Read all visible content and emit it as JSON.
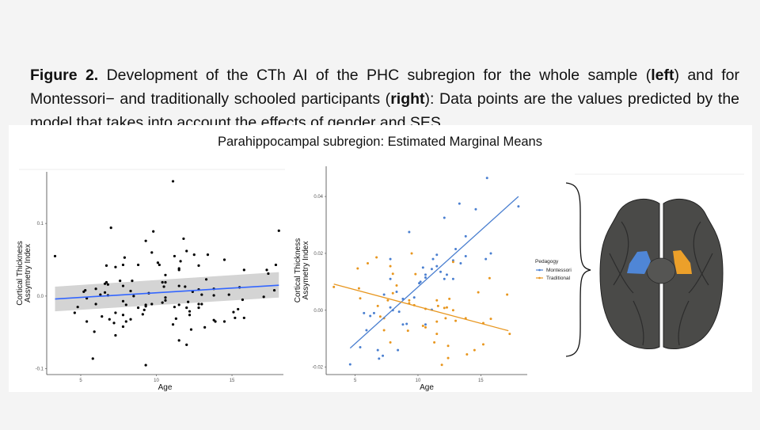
{
  "caption": {
    "fig_label": "Figure 2.",
    "part1": " Development of the CTh AI of the PHC subregion for the whole sample (",
    "left": "left",
    "part2": ") and for Montessori− and traditionally schooled participants (",
    "right": "right",
    "part3": "): Data points are the values predicted by the model that takes into account the effects of gender and SES."
  },
  "figure_title": "Parahippocampal subregion: Estimated Marginal Means",
  "chart_data": [
    {
      "type": "scatter",
      "title": "",
      "xlabel": "Age",
      "ylabel": "Cortical Thickness Assymetry Index",
      "xlim": [
        2.75,
        18.4
      ],
      "ylim": [
        -0.108,
        0.171
      ],
      "xticks": [
        5,
        10,
        15
      ],
      "xtick_labels": [
        "5",
        "10",
        "15"
      ],
      "yticks": [
        -0.1,
        0,
        0.1
      ],
      "ytick_labels": [
        "-0.1",
        "0.0",
        "0.1"
      ],
      "point_color": "#000000",
      "fit_color": "#3366ff",
      "band_color": "#d4d4d4",
      "fit": {
        "x": [
          3.3,
          18.1
        ],
        "y": [
          -0.004,
          0.015
        ],
        "lower": [
          -0.021,
          -0.002
        ],
        "upper": [
          0.013,
          0.033
        ]
      },
      "points": [
        [
          3.3,
          0.055
        ],
        [
          4.6,
          -0.023
        ],
        [
          4.8,
          -0.015
        ],
        [
          5.2,
          0.006
        ],
        [
          5.3,
          0.008
        ],
        [
          5.4,
          -0.003
        ],
        [
          5.4,
          -0.035
        ],
        [
          5.8,
          -0.086
        ],
        [
          5.9,
          -0.049
        ],
        [
          6.0,
          0.01
        ],
        [
          6.0,
          -0.011
        ],
        [
          6.3,
          0.002
        ],
        [
          6.4,
          -0.028
        ],
        [
          6.6,
          0.005
        ],
        [
          6.6,
          0.017
        ],
        [
          6.7,
          0.019
        ],
        [
          6.7,
          0.042
        ],
        [
          6.8,
          0.016
        ],
        [
          6.8,
          0.001
        ],
        [
          6.9,
          -0.032
        ],
        [
          7.0,
          0.094
        ],
        [
          7.2,
          -0.037
        ],
        [
          7.3,
          -0.054
        ],
        [
          7.3,
          0.04
        ],
        [
          7.3,
          -0.023
        ],
        [
          7.6,
          0.021
        ],
        [
          7.8,
          0.014
        ],
        [
          7.8,
          -0.007
        ],
        [
          7.8,
          -0.026
        ],
        [
          7.8,
          -0.042
        ],
        [
          7.8,
          0.043
        ],
        [
          7.9,
          0.053
        ],
        [
          8.0,
          -0.012
        ],
        [
          8.0,
          -0.035
        ],
        [
          8.3,
          0.007
        ],
        [
          8.3,
          -0.032
        ],
        [
          8.4,
          0.021
        ],
        [
          8.5,
          0.0
        ],
        [
          8.8,
          0.043
        ],
        [
          8.8,
          -0.016
        ],
        [
          9.1,
          -0.025
        ],
        [
          9.2,
          -0.019
        ],
        [
          9.3,
          0.076
        ],
        [
          9.3,
          -0.012
        ],
        [
          9.3,
          -0.014
        ],
        [
          9.3,
          -0.095
        ],
        [
          9.5,
          0.004
        ],
        [
          9.7,
          0.06
        ],
        [
          9.7,
          -0.011
        ],
        [
          9.8,
          0.089
        ],
        [
          10.1,
          0.046
        ],
        [
          10.2,
          0.043
        ],
        [
          10.4,
          0.019
        ],
        [
          10.4,
          -0.009
        ],
        [
          10.5,
          0.013
        ],
        [
          10.6,
          0.029
        ],
        [
          10.6,
          0.019
        ],
        [
          10.6,
          -0.002
        ],
        [
          10.6,
          -0.006
        ],
        [
          11.1,
          0.158
        ],
        [
          11.1,
          -0.039
        ],
        [
          11.2,
          0.055
        ],
        [
          11.2,
          -0.015
        ],
        [
          11.3,
          -0.031
        ],
        [
          11.5,
          0.038
        ],
        [
          11.5,
          0.036
        ],
        [
          11.5,
          0.014
        ],
        [
          11.5,
          -0.012
        ],
        [
          11.5,
          -0.061
        ],
        [
          11.6,
          0.048
        ],
        [
          11.8,
          0.079
        ],
        [
          11.9,
          0.013
        ],
        [
          12.0,
          0.062
        ],
        [
          12.0,
          -0.016
        ],
        [
          12.0,
          -0.067
        ],
        [
          12.1,
          -0.008
        ],
        [
          12.2,
          -0.026
        ],
        [
          12.2,
          -0.021
        ],
        [
          12.3,
          -0.046
        ],
        [
          12.4,
          0.006
        ],
        [
          12.5,
          0.057
        ],
        [
          12.8,
          0.042
        ],
        [
          12.8,
          0.009
        ],
        [
          12.8,
          -0.011
        ],
        [
          12.8,
          -0.016
        ],
        [
          13.0,
          0.002
        ],
        [
          13.0,
          -0.011
        ],
        [
          13.2,
          -0.043
        ],
        [
          13.3,
          0.023
        ],
        [
          13.4,
          0.057
        ],
        [
          13.8,
          0.01
        ],
        [
          13.8,
          0.001
        ],
        [
          13.8,
          -0.033
        ],
        [
          13.9,
          -0.035
        ],
        [
          14.5,
          0.05
        ],
        [
          14.5,
          -0.035
        ],
        [
          14.8,
          0.002
        ],
        [
          15.1,
          -0.022
        ],
        [
          15.2,
          -0.03
        ],
        [
          15.4,
          -0.018
        ],
        [
          15.5,
          0.012
        ],
        [
          15.7,
          -0.005
        ],
        [
          15.8,
          0.036
        ],
        [
          15.8,
          -0.03
        ],
        [
          17.1,
          -0.001
        ],
        [
          17.3,
          0.036
        ],
        [
          17.4,
          0.031
        ],
        [
          17.8,
          0.008
        ],
        [
          17.9,
          0.043
        ],
        [
          18.1,
          0.09
        ]
      ]
    },
    {
      "type": "scatter",
      "title": "",
      "xlabel": "Age",
      "ylabel": "Cortical Thickness Assymetry Index",
      "xlim": [
        2.69,
        18.7
      ],
      "ylim": [
        -0.0226,
        0.0506
      ],
      "xticks": [
        5,
        10,
        15
      ],
      "xtick_labels": [
        "5",
        "10",
        "15"
      ],
      "yticks": [
        -0.02,
        0,
        0.02,
        0.04
      ],
      "ytick_labels": [
        "-0.02",
        "0.00",
        "0.02",
        "0.04"
      ],
      "legend": {
        "title": "Pedagogy",
        "placement": "right"
      },
      "series": [
        {
          "name": "Montessori",
          "color": "#4a7fd0",
          "fit": {
            "x": [
              4.6,
              18.0
            ],
            "y": [
              -0.0133,
              0.04
            ]
          },
          "points": [
            [
              4.6,
              -0.019
            ],
            [
              5.4,
              -0.013
            ],
            [
              5.7,
              -0.001
            ],
            [
              5.9,
              -0.007
            ],
            [
              6.2,
              -0.002
            ],
            [
              6.5,
              -0.001
            ],
            [
              6.8,
              -0.014
            ],
            [
              6.9,
              -0.017
            ],
            [
              7.2,
              -0.016
            ],
            [
              7.3,
              0.0055
            ],
            [
              7.8,
              0.001
            ],
            [
              7.8,
              0.011
            ],
            [
              7.8,
              0.018
            ],
            [
              8.0,
              0.0
            ],
            [
              8.3,
              0.0065
            ],
            [
              8.4,
              -0.014
            ],
            [
              8.5,
              -0.0005
            ],
            [
              8.8,
              0.004
            ],
            [
              8.8,
              -0.005
            ],
            [
              9.1,
              -0.0048
            ],
            [
              9.3,
              0.0275
            ],
            [
              9.7,
              0.0045
            ],
            [
              10.1,
              0.0095
            ],
            [
              10.2,
              0.01
            ],
            [
              10.4,
              0.015
            ],
            [
              10.6,
              0.0115
            ],
            [
              10.6,
              0.0125
            ],
            [
              10.6,
              -0.005
            ],
            [
              11.1,
              0.0145
            ],
            [
              11.1,
              0.0002
            ],
            [
              11.2,
              0.018
            ],
            [
              11.5,
              0.0155
            ],
            [
              11.5,
              0.0195
            ],
            [
              11.8,
              0.0135
            ],
            [
              12.1,
              0.0325
            ],
            [
              12.1,
              0.011
            ],
            [
              12.3,
              0.0125
            ],
            [
              12.8,
              0.0175
            ],
            [
              12.8,
              0.011
            ],
            [
              13.0,
              0.0215
            ],
            [
              13.3,
              0.0375
            ],
            [
              13.4,
              0.0165
            ],
            [
              13.8,
              0.019
            ],
            [
              13.8,
              0.026
            ],
            [
              14.6,
              0.0355
            ],
            [
              15.4,
              0.018
            ],
            [
              15.5,
              0.0465
            ],
            [
              15.8,
              0.02
            ],
            [
              18.0,
              0.0365
            ]
          ]
        },
        {
          "name": "Traditional",
          "color": "#e8961e",
          "fit": {
            "x": [
              3.3,
              17.2
            ],
            "y": [
              0.0092,
              -0.0072
            ]
          },
          "points": [
            [
              3.3,
              0.0082
            ],
            [
              5.2,
              0.0147
            ],
            [
              5.3,
              0.0077
            ],
            [
              5.4,
              0.0042
            ],
            [
              6.0,
              0.0165
            ],
            [
              6.7,
              0.0186
            ],
            [
              6.8,
              0.0015
            ],
            [
              7.0,
              -0.0022
            ],
            [
              7.3,
              -0.0028
            ],
            [
              7.3,
              -0.007
            ],
            [
              7.6,
              0.0035
            ],
            [
              7.8,
              0.0155
            ],
            [
              7.8,
              -0.0113
            ],
            [
              8.0,
              0.0128
            ],
            [
              8.0,
              0.006
            ],
            [
              8.3,
              0.0087
            ],
            [
              9.2,
              -0.0072
            ],
            [
              9.3,
              0.0035
            ],
            [
              9.3,
              0.0025
            ],
            [
              9.5,
              0.02
            ],
            [
              9.7,
              0.0018
            ],
            [
              9.8,
              0.0127
            ],
            [
              10.4,
              -0.0055
            ],
            [
              10.6,
              0.0005
            ],
            [
              10.6,
              -0.006
            ],
            [
              11.3,
              -0.0113
            ],
            [
              11.5,
              0.0035
            ],
            [
              11.5,
              -0.004
            ],
            [
              11.5,
              -0.0083
            ],
            [
              11.6,
              0.0015
            ],
            [
              11.9,
              -0.0192
            ],
            [
              12.1,
              0.0008
            ],
            [
              12.2,
              -0.0028
            ],
            [
              12.3,
              0.001
            ],
            [
              12.4,
              -0.0125
            ],
            [
              12.4,
              -0.0168
            ],
            [
              12.5,
              0.004
            ],
            [
              12.8,
              0.017
            ],
            [
              12.8,
              0.0
            ],
            [
              13.0,
              -0.0037
            ],
            [
              13.8,
              -0.0028
            ],
            [
              13.9,
              -0.0155
            ],
            [
              14.5,
              -0.014
            ],
            [
              14.8,
              0.0063
            ],
            [
              15.2,
              -0.0045
            ],
            [
              15.2,
              -0.012
            ],
            [
              15.7,
              0.0113
            ],
            [
              15.8,
              -0.003
            ],
            [
              17.1,
              0.0055
            ],
            [
              17.3,
              -0.0083
            ]
          ]
        }
      ]
    }
  ],
  "brain": {
    "left_region_color": "#4f86d6",
    "right_region_color": "#eca02a",
    "cortex_color": "#4a4a48"
  }
}
